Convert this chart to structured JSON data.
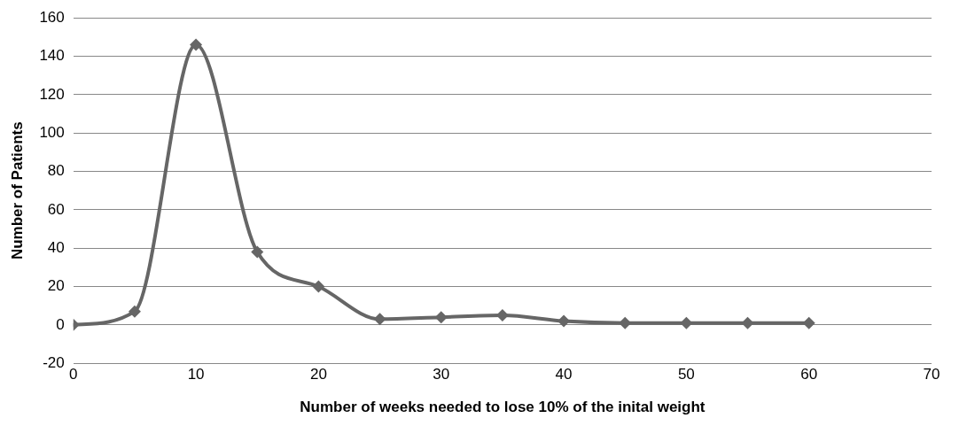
{
  "chart_data": {
    "type": "line",
    "xlabel": "Number of weeks needed to lose 10% of the inital weight",
    "ylabel": "Number of Patients",
    "x": [
      0,
      5,
      10,
      15,
      20,
      25,
      30,
      35,
      40,
      45,
      50,
      55,
      60
    ],
    "series": [
      {
        "color": "#666666",
        "values": [
          0,
          7,
          146,
          38,
          20,
          3,
          4,
          5,
          2,
          1,
          1,
          1,
          1
        ]
      }
    ],
    "xlim": [
      0,
      70
    ],
    "xticks": [
      0,
      10,
      20,
      30,
      40,
      50,
      60,
      70
    ],
    "ylim": [
      -20,
      160
    ],
    "yticks": [
      -20,
      0,
      20,
      40,
      60,
      80,
      100,
      120,
      140,
      160
    ],
    "grid": "y",
    "legend": false,
    "marker": "diamond",
    "line_style": "solid"
  }
}
